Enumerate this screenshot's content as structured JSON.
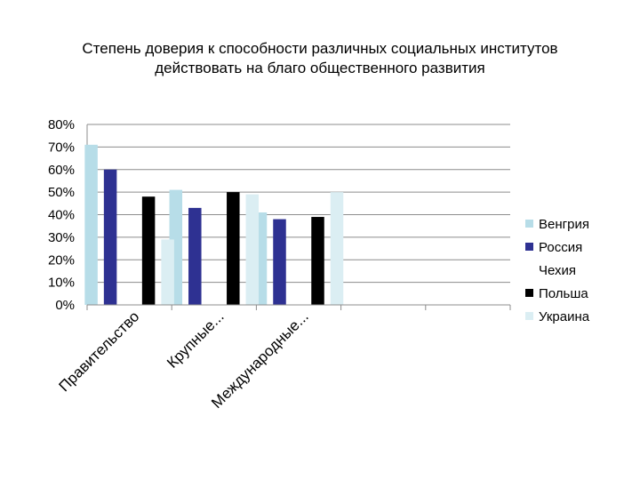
{
  "chart_data": {
    "type": "bar",
    "title_line1": "Степень доверия к способности различных социальных институтов",
    "title_line2": "действовать на благо общественного развития",
    "categories": [
      "Правительство",
      "Крупные...",
      "Международные...",
      "",
      ""
    ],
    "yticks": [
      "0%",
      "10%",
      "20%",
      "30%",
      "40%",
      "50%",
      "60%",
      "70%",
      "80%"
    ],
    "ylim": [
      0,
      80
    ],
    "grid": true,
    "legend_position": "right",
    "series": [
      {
        "name": "Венгрия",
        "color": "#b7dde8",
        "values": [
          71,
          51,
          41,
          null,
          null
        ]
      },
      {
        "name": "Россия",
        "color": "#2e3192",
        "values": [
          60,
          43,
          38,
          null,
          null
        ]
      },
      {
        "name": "Чехия",
        "color": "#ffffff",
        "values": [
          0,
          0,
          0,
          null,
          null
        ]
      },
      {
        "name": "Польша",
        "color": "#000000",
        "values": [
          48,
          50,
          39,
          null,
          null
        ]
      },
      {
        "name": "Украина",
        "color": "#dbeef3",
        "values": [
          29,
          49,
          50,
          null,
          null
        ]
      }
    ]
  }
}
